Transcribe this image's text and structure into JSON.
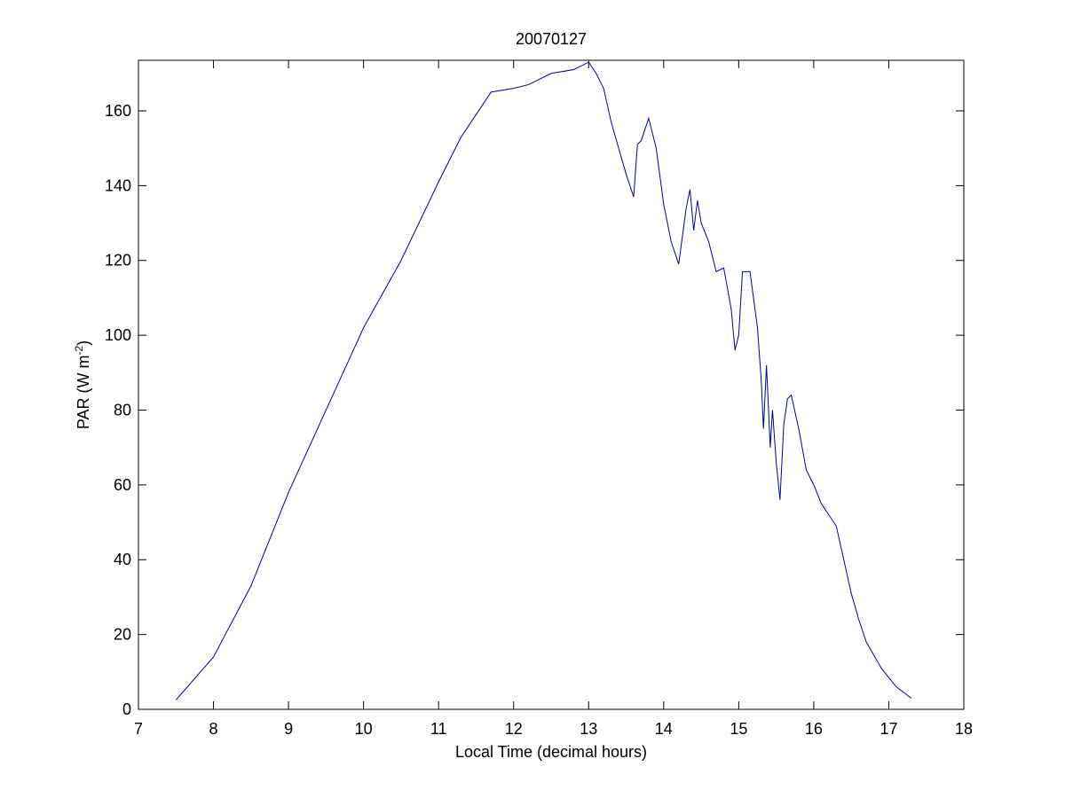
{
  "chart_data": {
    "type": "line",
    "title": "20070127",
    "xlabel": "Local Time (decimal hours)",
    "ylabel": [
      "PAR (W m",
      "-2",
      ")"
    ],
    "x": [
      7.5,
      8,
      8.5,
      9,
      9.5,
      10,
      10.5,
      11,
      11.3,
      11.5,
      11.7,
      12,
      12.2,
      12.5,
      12.8,
      13,
      13.1,
      13.2,
      13.3,
      13.4,
      13.5,
      13.6,
      13.65,
      13.7,
      13.8,
      13.9,
      14.0,
      14.1,
      14.2,
      14.3,
      14.35,
      14.4,
      14.45,
      14.5,
      14.6,
      14.7,
      14.8,
      14.9,
      14.95,
      15.0,
      15.05,
      15.15,
      15.25,
      15.3,
      15.33,
      15.37,
      15.42,
      15.45,
      15.5,
      15.55,
      15.6,
      15.65,
      15.7,
      15.8,
      15.9,
      16.0,
      16.1,
      16.2,
      16.3,
      16.4,
      16.5,
      16.6,
      16.7,
      16.9,
      17.1,
      17.3
    ],
    "series": [
      {
        "color": "#0000a0",
        "values": [
          2.5,
          14,
          33,
          58,
          80,
          102,
          120,
          141,
          153,
          159,
          165,
          166,
          167,
          170,
          171,
          173,
          170,
          166,
          157,
          150,
          143,
          137,
          151,
          152,
          158,
          150,
          135,
          125,
          119,
          134,
          139,
          128,
          136,
          130,
          125,
          117,
          118,
          107,
          96,
          100,
          117,
          117,
          102,
          88,
          75,
          92,
          70,
          80,
          66,
          56,
          76,
          83,
          84,
          75,
          64,
          60,
          55,
          52,
          49,
          40,
          31,
          24,
          18,
          11,
          6,
          3
        ]
      }
    ],
    "xlim": [
      7,
      18
    ],
    "xticks": [
      7,
      8,
      9,
      10,
      11,
      12,
      13,
      14,
      15,
      16,
      17,
      18
    ],
    "ylim": [
      0,
      173.5
    ],
    "yticks": [
      0,
      20,
      40,
      60,
      80,
      100,
      120,
      140,
      160
    ],
    "grid": false
  }
}
